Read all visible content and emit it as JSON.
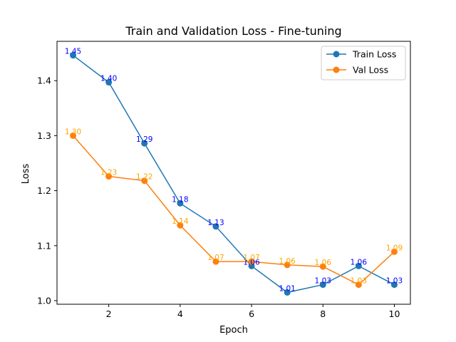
{
  "chart_data": {
    "type": "line",
    "title": "Train and Validation Loss - Fine-tuning",
    "xlabel": "Epoch",
    "ylabel": "Loss",
    "x": [
      1,
      2,
      3,
      4,
      5,
      6,
      7,
      8,
      9,
      10
    ],
    "xlim": [
      0.55,
      10.45
    ],
    "ylim": [
      0.9935,
      1.4715
    ],
    "xticks": [
      2,
      4,
      6,
      8,
      10
    ],
    "yticks": [
      1.0,
      1.1,
      1.2,
      1.3,
      1.4
    ],
    "xtick_labels": [
      "2",
      "4",
      "6",
      "8",
      "10"
    ],
    "ytick_labels": [
      "1.0",
      "1.1",
      "1.2",
      "1.3",
      "1.4"
    ],
    "grid": false,
    "legend_position": "top-right",
    "series": [
      {
        "name": "Train Loss",
        "color": "#1f77b4",
        "label_color": "#0000ff",
        "values": [
          1.446,
          1.397,
          1.286,
          1.177,
          1.135,
          1.063,
          1.015,
          1.029,
          1.063,
          1.029
        ],
        "labels": [
          "1.45",
          "1.40",
          "1.29",
          "1.18",
          "1.13",
          "1.06",
          "1.01",
          "1.03",
          "1.06",
          "1.03"
        ]
      },
      {
        "name": "Val Loss",
        "color": "#ff7f0e",
        "label_color": "#ffa500",
        "values": [
          1.3,
          1.226,
          1.218,
          1.137,
          1.071,
          1.071,
          1.065,
          1.062,
          1.029,
          1.089
        ],
        "labels": [
          "1.30",
          "1.23",
          "1.22",
          "1.14",
          "1.07",
          "1.07",
          "1.06",
          "1.06",
          "1.03",
          "1.09"
        ]
      }
    ]
  }
}
